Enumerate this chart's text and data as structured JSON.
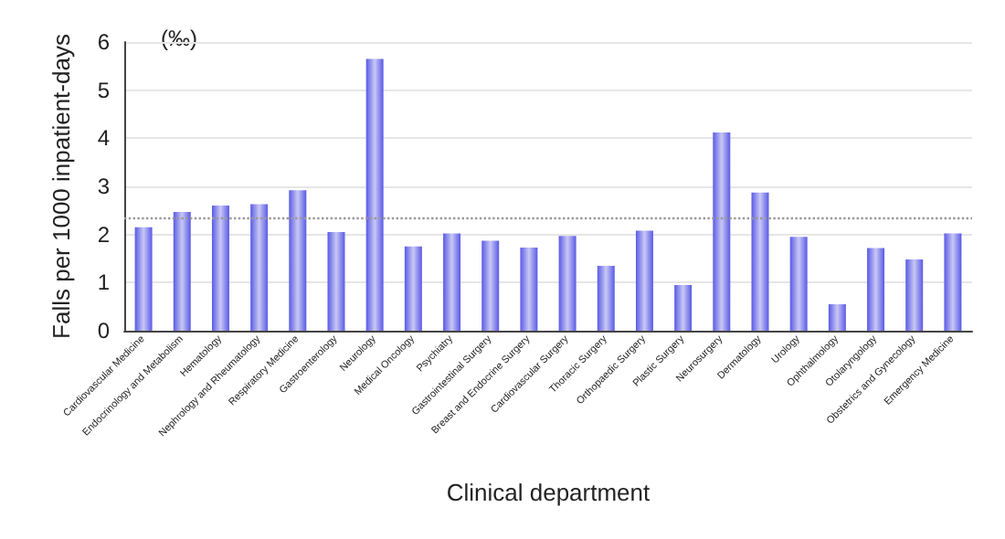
{
  "chart_data": {
    "type": "bar",
    "xlabel": "Clinical department",
    "ylabel": "Falls per 1000 inpatient-days",
    "annotations": [
      "(‰)"
    ],
    "categories": [
      "Cardiovascular Medicine",
      "Endocrinology and Metabolism",
      "Hematology",
      "Nephrology and Rheumatology",
      "Respiratory Medicine",
      "Gastroenterology",
      "Neurology",
      "Medical Oncology",
      "Psychiatry",
      "Gastrointestinal Surgery",
      "Breast and Endocrine Surgery",
      "Cardiovascular Surgery",
      "Thoracic Surgery",
      "Orthopaedic Surgery",
      "Plastic Surgery",
      "Neurosurgery",
      "Dermatology",
      "Urology",
      "Ophthalmology",
      "Otolaryngology",
      "Obstetrics and Gynecology",
      "Emergency Medicine"
    ],
    "values": [
      2.15,
      2.47,
      2.6,
      2.63,
      2.92,
      2.05,
      5.65,
      1.75,
      2.02,
      1.87,
      1.73,
      1.97,
      1.35,
      2.08,
      0.95,
      4.12,
      2.87,
      1.95,
      0.55,
      1.72,
      1.48,
      2.02
    ],
    "color": "#5a5ae6",
    "ylim": [
      0,
      6
    ],
    "yticks": [
      0,
      1,
      2,
      3,
      4,
      5,
      6
    ],
    "grid": "y",
    "ref_lines": [
      {
        "axis": "y",
        "value": 2.33,
        "color": "#999999",
        "line_style": "dotted"
      }
    ]
  }
}
